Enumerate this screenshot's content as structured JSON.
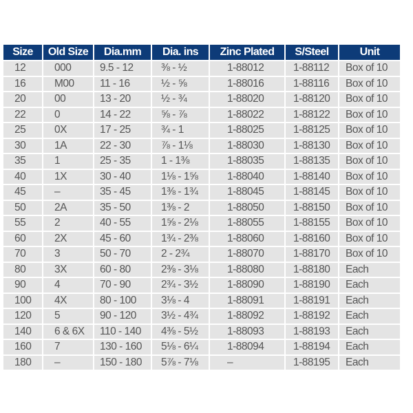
{
  "headers": [
    "Size",
    "Old Size",
    "Dia.mm",
    "Dia. ins",
    "Zinc Plated",
    "S/Steel",
    "Unit"
  ],
  "colors": {
    "header_bg": "#0d3b78",
    "cell_bg": "#e4e4e4",
    "text": "#555555"
  },
  "rows": [
    [
      "12",
      "000",
      "9.5 - 12",
      "⅜ - ½",
      "1-88012",
      "1-88112",
      "Box of 10"
    ],
    [
      "16",
      "M00",
      "11 - 16",
      "½ - ⅝",
      "1-88016",
      "1-88116",
      "Box of 10"
    ],
    [
      "20",
      "00",
      "13 - 20",
      "½ - ¾",
      "1-88020",
      "1-88120",
      "Box of 10"
    ],
    [
      "22",
      "0",
      "14 - 22",
      "⅝ - ⅞",
      "1-88022",
      "1-88122",
      "Box of 10"
    ],
    [
      "25",
      "0X",
      "17 - 25",
      "¾ - 1",
      "1-88025",
      "1-88125",
      "Box of 10"
    ],
    [
      "30",
      "1A",
      "22 - 30",
      "⅞ - 1⅛",
      "1-88030",
      "1-88130",
      "Box of 10"
    ],
    [
      "35",
      "1",
      "25 - 35",
      "1 - 1⅜",
      "1-88035",
      "1-88135",
      "Box of 10"
    ],
    [
      "40",
      "1X",
      "30 - 40",
      "1⅛ - 1⅝",
      "1-88040",
      "1-88140",
      "Box of 10"
    ],
    [
      "45",
      "–",
      "35 - 45",
      "1⅜ - 1¾",
      "1-88045",
      "1-88145",
      "Box of 10"
    ],
    [
      "50",
      "2A",
      "35 - 50",
      "1⅜ - 2",
      "1-88050",
      "1-88150",
      "Box of 10"
    ],
    [
      "55",
      "2",
      "40 - 55",
      "1⅝ - 2⅛",
      "1-88055",
      "1-88155",
      "Box of 10"
    ],
    [
      "60",
      "2X",
      "45 - 60",
      "1¾ - 2⅜",
      "1-88060",
      "1-88160",
      "Box of 10"
    ],
    [
      "70",
      "3",
      "50 - 70",
      "2 - 2¾",
      "1-88070",
      "1-88170",
      "Box of 10"
    ],
    [
      "80",
      "3X",
      "60 - 80",
      "2⅜ - 3⅛",
      "1-88080",
      "1-88180",
      "Each"
    ],
    [
      "90",
      "4",
      "70 - 90",
      "2¾ - 3½",
      "1-88090",
      "1-88190",
      "Each"
    ],
    [
      "100",
      "4X",
      "80 - 100",
      "3⅛ - 4",
      "1-88091",
      "1-88191",
      "Each"
    ],
    [
      "120",
      "5",
      "90 - 120",
      "3½ - 4¾",
      "1-88092",
      "1-88192",
      "Each"
    ],
    [
      "140",
      "6 & 6X",
      "110 - 140",
      "4⅜ - 5½",
      "1-88093",
      "1-88193",
      "Each"
    ],
    [
      "160",
      "7",
      "130 - 160",
      "5⅛ - 6¼",
      "1-88094",
      "1-88194",
      "Each"
    ],
    [
      "180",
      "–",
      "150 - 180",
      "5⅞ - 7⅛",
      "–",
      "1-88195",
      "Each"
    ]
  ]
}
